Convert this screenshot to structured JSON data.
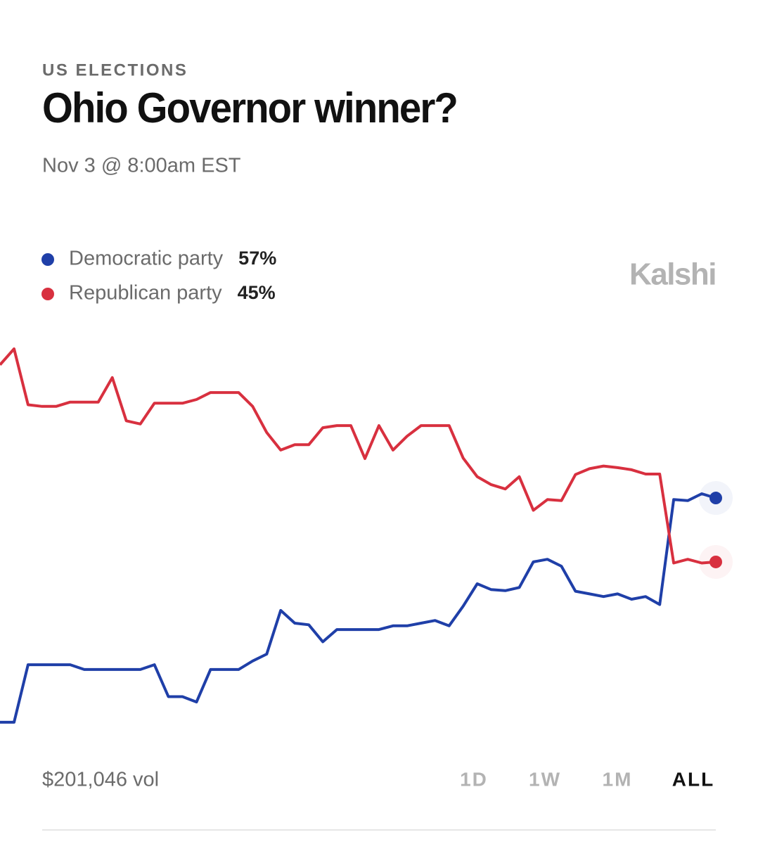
{
  "chart_data": {
    "type": "line",
    "category": "US ELECTIONS",
    "title": "Ohio Governor winner?",
    "subtitle": "Nov 3 @ 8:00am EST",
    "brand": "Kalshi",
    "ylim": [
      10,
      92
    ],
    "series": [
      {
        "name": "Democratic party",
        "color": "#1f3fa8",
        "value_label": "57%",
        "values": [
          14.9,
          14.9,
          25.7,
          25.7,
          25.7,
          25.7,
          24.8,
          24.8,
          24.8,
          24.8,
          24.8,
          25.7,
          19.7,
          19.7,
          18.7,
          24.8,
          24.8,
          24.8,
          26.4,
          27.7,
          35.9,
          33.5,
          33.2,
          30,
          32.3,
          32.3,
          32.3,
          32.3,
          33,
          33,
          33.5,
          34,
          33,
          36.7,
          40.9,
          39.8,
          39.6,
          40.2,
          45,
          45.5,
          44.2,
          39.5,
          39,
          38.5,
          39,
          38,
          38.5,
          37,
          56.7,
          56.5,
          57.8,
          57
        ]
      },
      {
        "name": "Republican party",
        "color": "#d8303f",
        "value_label": "45%",
        "values": [
          82,
          85,
          74.5,
          74.2,
          74.2,
          75,
          75,
          75,
          79.6,
          71.5,
          70.9,
          74.8,
          74.8,
          74.8,
          75.5,
          76.8,
          76.8,
          76.8,
          74.2,
          69.3,
          66,
          67,
          67,
          70.2,
          70.6,
          70.6,
          64.4,
          70.6,
          66,
          68.6,
          70.6,
          70.6,
          70.6,
          64.5,
          61,
          59.5,
          58.7,
          61,
          54.7,
          56.7,
          56.5,
          61.4,
          62.5,
          63,
          62.7,
          62.3,
          61.5,
          61.5,
          44.8,
          45.5,
          44.8,
          45
        ]
      }
    ],
    "volume": "$201,046 vol",
    "ranges": [
      "1D",
      "1W",
      "1M",
      "ALL"
    ],
    "selected_range": "ALL"
  }
}
